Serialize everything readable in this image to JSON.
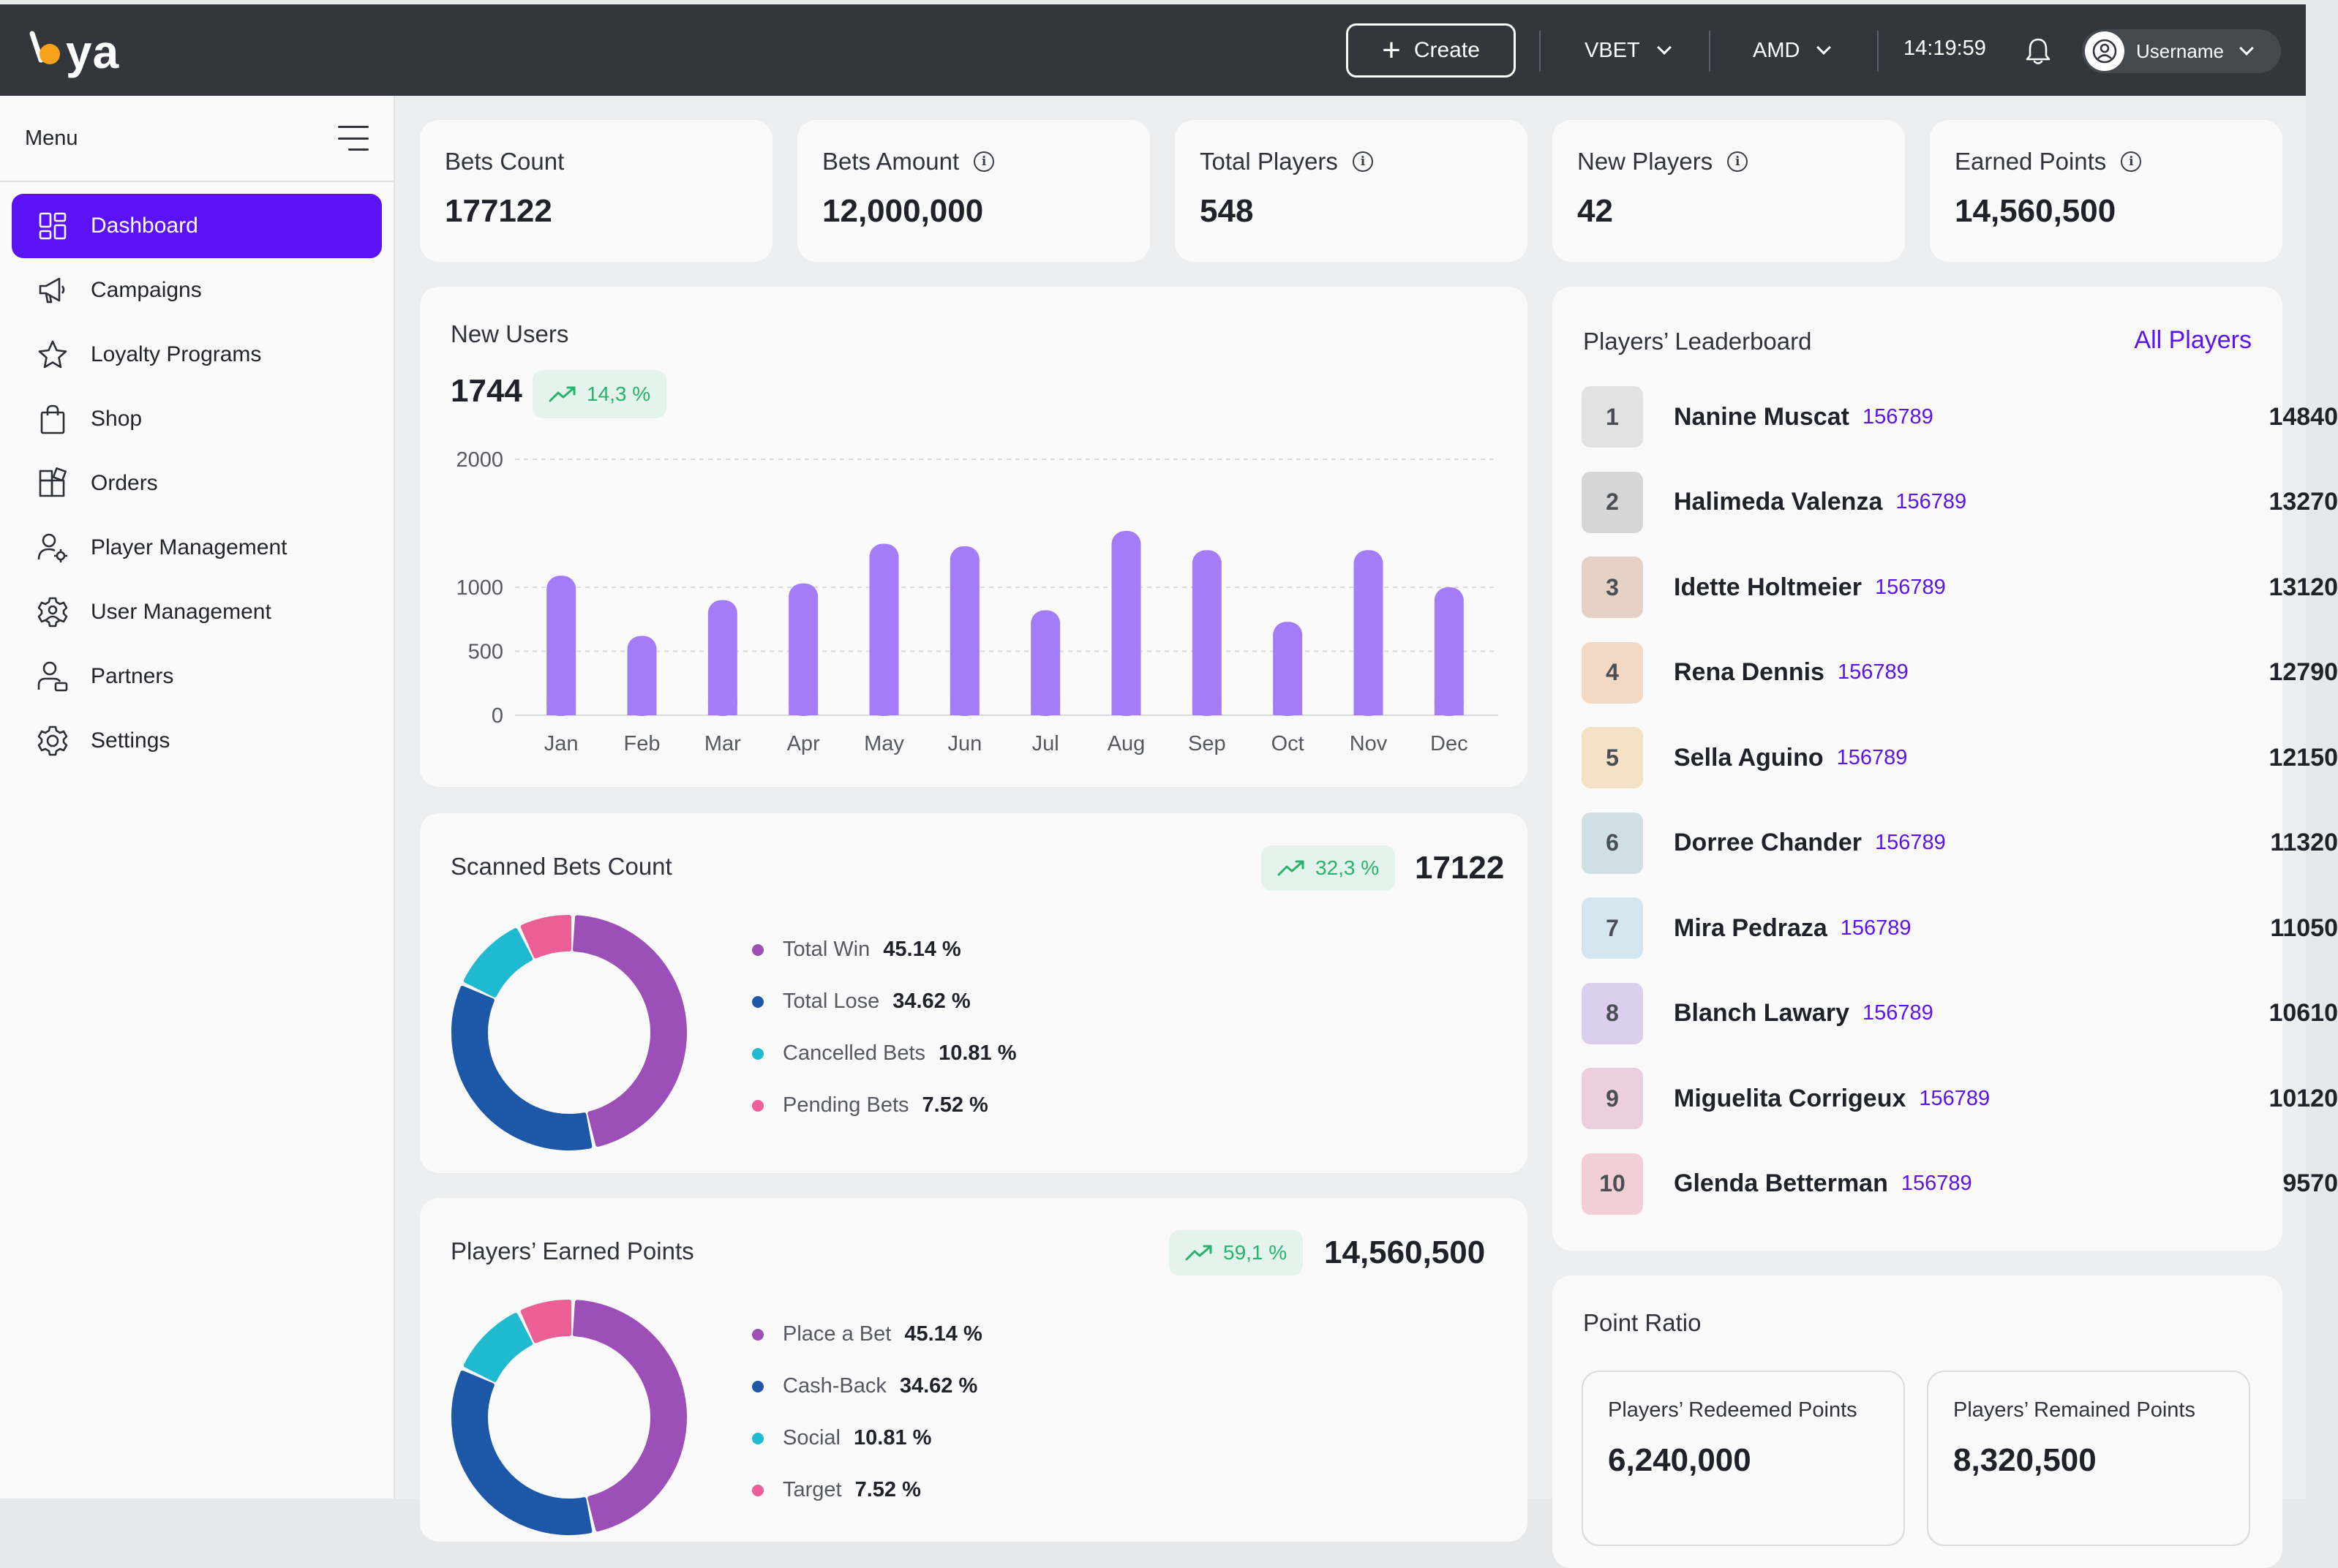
{
  "app": {
    "logo_text": "ya"
  },
  "topbar": {
    "create_label": "Create",
    "brand_select": "VBET",
    "currency_select": "AMD",
    "time": "14:19:59",
    "username": "Username"
  },
  "sidebar": {
    "menu_label": "Menu",
    "items": [
      {
        "label": "Dashboard",
        "icon": "dashboard-icon",
        "active": true
      },
      {
        "label": "Campaigns",
        "icon": "megaphone-icon"
      },
      {
        "label": "Loyalty Programs",
        "icon": "star-icon"
      },
      {
        "label": "Shop",
        "icon": "shopping-bag-icon"
      },
      {
        "label": "Orders",
        "icon": "orders-icon"
      },
      {
        "label": "Player Management",
        "icon": "player-management-icon"
      },
      {
        "label": "User Management",
        "icon": "user-management-icon"
      },
      {
        "label": "Partners",
        "icon": "partners-icon"
      },
      {
        "label": "Settings",
        "icon": "settings-icon"
      }
    ]
  },
  "stats": [
    {
      "title": "Bets Count",
      "value": "177122",
      "info": false
    },
    {
      "title": "Bets Amount",
      "value": "12,000,000",
      "info": true
    },
    {
      "title": "Total Players",
      "value": "548",
      "info": true
    },
    {
      "title": "New Players",
      "value": "42",
      "info": true
    },
    {
      "title": "Earned Points",
      "value": "14,560,500",
      "info": true
    }
  ],
  "new_users": {
    "title": "New Users",
    "total": "1744",
    "change": "14,3 %"
  },
  "scanned_bets": {
    "title": "Scanned Bets Count",
    "change": "32,3 %",
    "total": "17122",
    "legend": [
      {
        "label": "Total Win",
        "pct": "45.14 %",
        "color": "#9b4fb7"
      },
      {
        "label": "Total Lose",
        "pct": "34.62 %",
        "color": "#1d58a8"
      },
      {
        "label": "Cancelled Bets",
        "pct": "10.81 %",
        "color": "#1fbad0"
      },
      {
        "label": "Pending Bets",
        "pct": "7.52 %",
        "color": "#ec5e96"
      }
    ]
  },
  "earned_points": {
    "title": "Players’ Earned Points",
    "change": "59,1 %",
    "total": "14,560,500",
    "legend": [
      {
        "label": "Place a Bet",
        "pct": "45.14 %",
        "color": "#9b4fb7"
      },
      {
        "label": "Cash-Back",
        "pct": "34.62 %",
        "color": "#1d58a8"
      },
      {
        "label": "Social",
        "pct": "10.81 %",
        "color": "#1fbad0"
      },
      {
        "label": "Target",
        "pct": "7.52 %",
        "color": "#ec5e96"
      }
    ]
  },
  "leaderboard": {
    "title": "Players’ Leaderboard",
    "all_link": "All Players",
    "rows": [
      {
        "rank": "1",
        "name": "Nanine Muscat",
        "id": "156789",
        "score": "14840",
        "color": "#e2e2e2"
      },
      {
        "rank": "2",
        "name": "Halimeda Valenza",
        "id": "156789",
        "score": "13270",
        "color": "#d6d6d6"
      },
      {
        "rank": "3",
        "name": "Idette Holtmeier",
        "id": "156789",
        "score": "13120",
        "color": "#e6d2c4"
      },
      {
        "rank": "4",
        "name": "Rena Dennis",
        "id": "156789",
        "score": "12790",
        "color": "#f3d9c3"
      },
      {
        "rank": "5",
        "name": "Sella Aguino",
        "id": "156789",
        "score": "12150",
        "color": "#f6e2c7"
      },
      {
        "rank": "6",
        "name": "Dorree Chander",
        "id": "156789",
        "score": "11320",
        "color": "#cfdfe3"
      },
      {
        "rank": "7",
        "name": "Mira Pedraza",
        "id": "156789",
        "score": "11050",
        "color": "#d3e5ee"
      },
      {
        "rank": "8",
        "name": "Blanch Lawary",
        "id": "156789",
        "score": "10610",
        "color": "#dccfee"
      },
      {
        "rank": "9",
        "name": "Miguelita Corrigeux",
        "id": "156789",
        "score": "10120",
        "color": "#eccfdf"
      },
      {
        "rank": "10",
        "name": "Glenda Betterman",
        "id": "156789",
        "score": "9570",
        "color": "#f2cfd6"
      }
    ]
  },
  "point_ratio": {
    "title": "Point Ratio",
    "redeemed_label": "Players’ Redeemed Points",
    "redeemed_value": "6,240,000",
    "remained_label": "Players’ Remained Points",
    "remained_value": "8,320,500"
  },
  "colors": {
    "accent": "#5b13f5",
    "bar": "#a47cf8",
    "positive": "#27b36b"
  },
  "chart_data": [
    {
      "type": "bar",
      "categories": [
        "Jan",
        "Feb",
        "Mar",
        "Apr",
        "May",
        "Jun",
        "Jul",
        "Aug",
        "Sep",
        "Oct",
        "Nov",
        "Dec"
      ],
      "values": [
        1090,
        620,
        900,
        1030,
        1340,
        1320,
        820,
        1440,
        1290,
        730,
        1290,
        1000
      ],
      "ylim": [
        0,
        2000
      ],
      "yticks": [
        "0",
        "500",
        "1000",
        "2000"
      ],
      "ytick_values": [
        0,
        500,
        1000,
        2000
      ],
      "grid": true
    },
    {
      "type": "pie",
      "labels": [
        "Total Win",
        "Total Lose",
        "Cancelled Bets",
        "Pending Bets"
      ],
      "values": [
        45.14,
        34.62,
        10.81,
        7.52
      ]
    },
    {
      "type": "pie",
      "labels": [
        "Place a Bet",
        "Cash-Back",
        "Social",
        "Target"
      ],
      "values": [
        45.14,
        34.62,
        10.81,
        7.52
      ]
    }
  ]
}
